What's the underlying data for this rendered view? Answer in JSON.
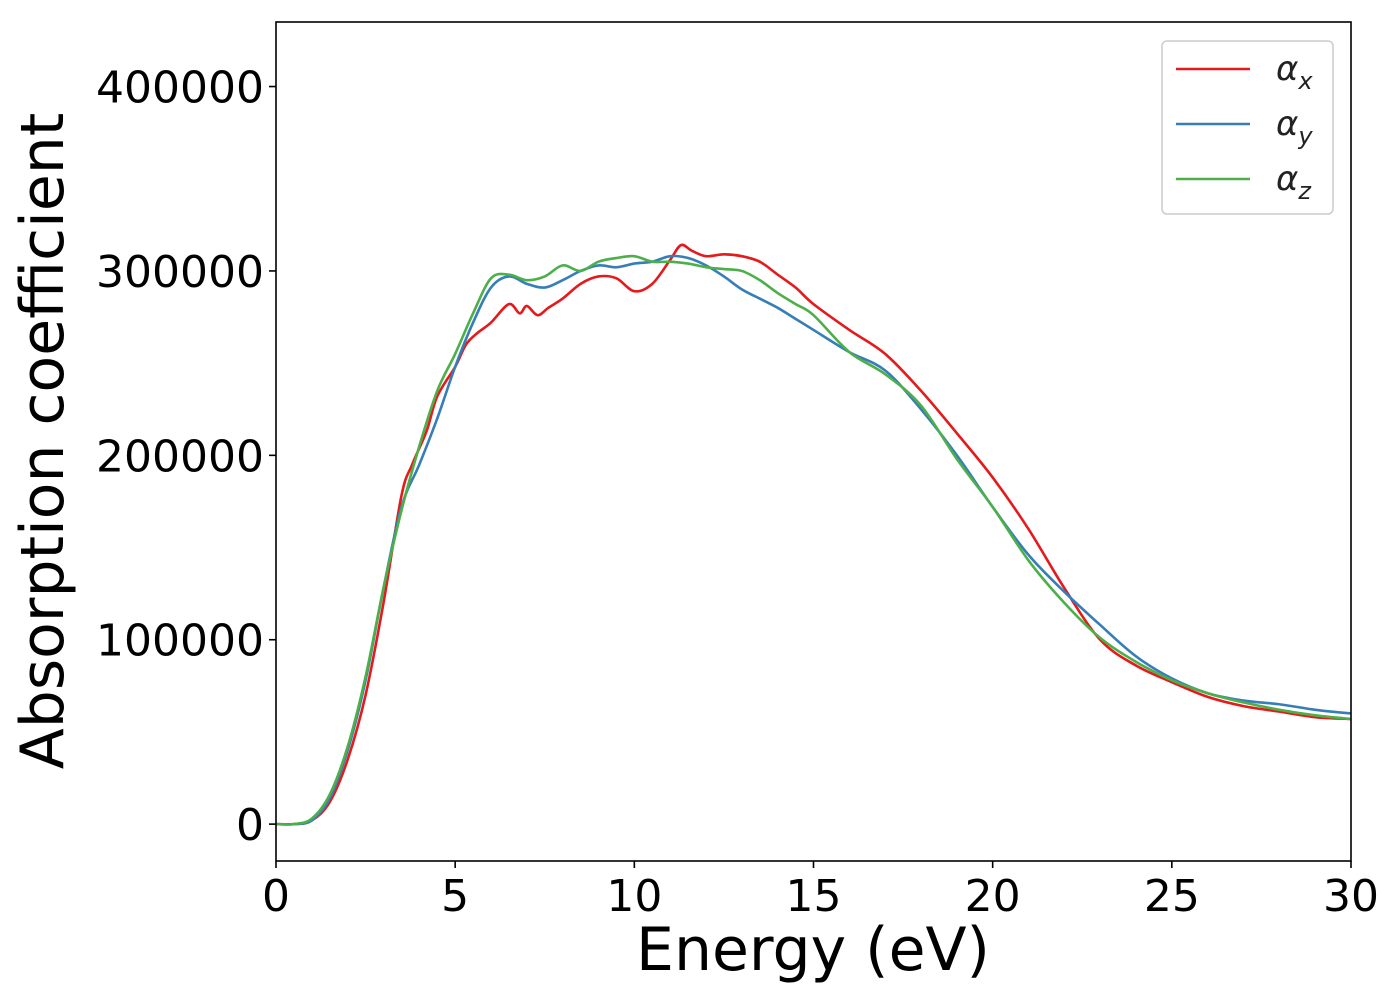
{
  "chart_data": {
    "type": "line",
    "title": "",
    "xlabel": "Energy (eV)",
    "ylabel": "Absorption coefficient",
    "xlim": [
      0,
      30
    ],
    "ylim": [
      -20000,
      435000
    ],
    "xticks": [
      0,
      5,
      10,
      15,
      20,
      25,
      30
    ],
    "xtick_labels": [
      "0",
      "5",
      "10",
      "15",
      "20",
      "25",
      "30"
    ],
    "yticks": [
      0,
      100000,
      200000,
      300000,
      400000
    ],
    "ytick_labels": [
      "0",
      "100000",
      "200000",
      "300000",
      "400000"
    ],
    "grid": false,
    "legend_position": "top-right",
    "series": [
      {
        "name": "αx",
        "label_main": "α",
        "label_sub": "x",
        "color": "#e41a1c",
        "x": [
          0,
          0.5,
          1.0,
          1.5,
          2.0,
          2.5,
          3.0,
          3.5,
          3.8,
          4.2,
          4.5,
          5.0,
          5.3,
          5.6,
          6.0,
          6.5,
          6.8,
          7.0,
          7.3,
          7.6,
          8.0,
          8.5,
          9.0,
          9.5,
          10.0,
          10.5,
          11.0,
          11.3,
          11.6,
          12.0,
          12.5,
          13.0,
          13.5,
          14.0,
          14.5,
          15.0,
          16.0,
          17.0,
          18.0,
          19.0,
          20.0,
          21.0,
          22.0,
          23.0,
          24.0,
          25.0,
          26.0,
          27.0,
          28.0,
          29.0,
          30.0
        ],
        "y": [
          0,
          0,
          2000,
          12000,
          35000,
          70000,
          120000,
          178000,
          195000,
          213000,
          232000,
          248000,
          260000,
          266000,
          272000,
          282000,
          277000,
          281000,
          276000,
          280000,
          285000,
          293000,
          297000,
          296000,
          289000,
          293000,
          306000,
          314000,
          311000,
          308000,
          309000,
          308000,
          305000,
          298000,
          291000,
          282000,
          268000,
          255000,
          235000,
          212000,
          188000,
          160000,
          128000,
          100000,
          86000,
          77000,
          69000,
          64000,
          61000,
          58000,
          57000
        ]
      },
      {
        "name": "αy",
        "label_main": "α",
        "label_sub": "y",
        "color": "#377eb8",
        "x": [
          0,
          0.5,
          1.0,
          1.5,
          2.0,
          2.5,
          3.0,
          3.5,
          4.0,
          4.5,
          5.0,
          5.5,
          6.0,
          6.5,
          7.0,
          7.5,
          8.0,
          8.5,
          9.0,
          9.5,
          10.0,
          10.5,
          11.0,
          11.5,
          12.0,
          12.5,
          13.0,
          13.5,
          14.0,
          14.5,
          15.0,
          16.0,
          17.0,
          18.0,
          19.0,
          20.0,
          21.0,
          22.0,
          23.0,
          24.0,
          25.0,
          26.0,
          27.0,
          28.0,
          29.0,
          30.0
        ],
        "y": [
          0,
          0,
          2000,
          14000,
          40000,
          78000,
          128000,
          172000,
          195000,
          220000,
          248000,
          272000,
          291000,
          297000,
          293000,
          291000,
          295000,
          300000,
          303000,
          302000,
          304000,
          305000,
          308000,
          307000,
          303000,
          297000,
          290000,
          285000,
          280000,
          274000,
          268000,
          256000,
          246000,
          225000,
          200000,
          172000,
          146000,
          126000,
          108000,
          91000,
          79000,
          71000,
          67000,
          65000,
          62000,
          60000
        ]
      },
      {
        "name": "αz",
        "label_main": "α",
        "label_sub": "z",
        "color": "#4daf4a",
        "x": [
          0,
          0.5,
          1.0,
          1.5,
          2.0,
          2.5,
          3.0,
          3.5,
          4.0,
          4.5,
          5.0,
          5.5,
          6.0,
          6.5,
          7.0,
          7.5,
          8.0,
          8.5,
          9.0,
          9.5,
          10.0,
          10.5,
          11.0,
          11.5,
          12.0,
          12.5,
          13.0,
          13.5,
          14.0,
          14.5,
          15.0,
          16.0,
          17.0,
          18.0,
          19.0,
          20.0,
          21.0,
          22.0,
          23.0,
          24.0,
          25.0,
          26.0,
          27.0,
          28.0,
          29.0,
          30.0
        ],
        "y": [
          0,
          0,
          3000,
          16000,
          42000,
          80000,
          128000,
          170000,
          205000,
          235000,
          255000,
          277000,
          296000,
          298000,
          295000,
          297000,
          303000,
          300000,
          305000,
          307000,
          308000,
          305000,
          305000,
          304000,
          302000,
          301000,
          300000,
          295000,
          288000,
          282000,
          276000,
          256000,
          244000,
          227000,
          198000,
          172000,
          143000,
          120000,
          101000,
          88000,
          78000,
          71000,
          66000,
          62000,
          59000,
          57000
        ]
      }
    ]
  }
}
